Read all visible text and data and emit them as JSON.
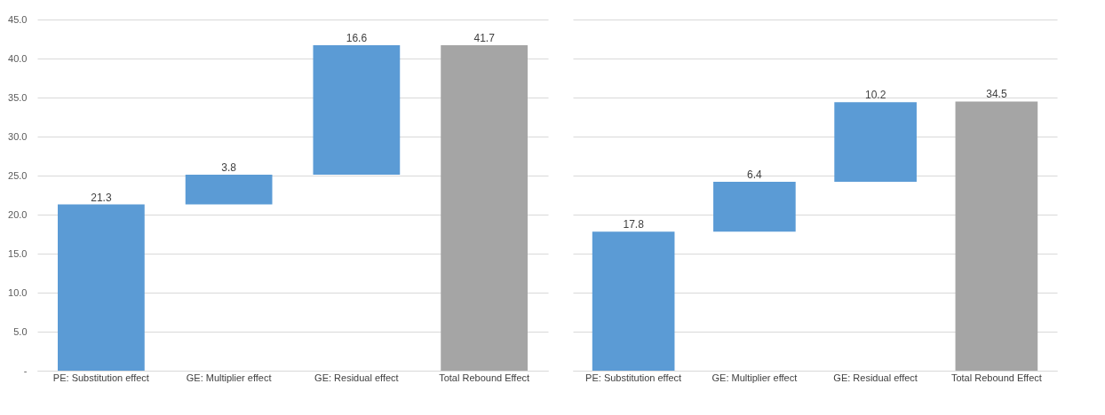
{
  "chart_data": [
    {
      "type": "bar",
      "categories": [
        "PE: Substitution effect",
        "GE: Multiplier effect",
        "GE: Residual effect",
        "Total Rebound Effect"
      ],
      "values": [
        21.3,
        3.8,
        16.6,
        41.7
      ],
      "base": [
        0,
        21.3,
        25.1,
        0
      ],
      "colors": [
        "#5b9bd5",
        "#5b9bd5",
        "#5b9bd5",
        "#a5a5a5"
      ],
      "ylim": [
        0,
        45
      ],
      "yticks": [
        {
          "value": 0,
          "label": "-"
        },
        {
          "value": 5,
          "label": "5.0"
        },
        {
          "value": 10,
          "label": "10.0"
        },
        {
          "value": 15,
          "label": "15.0"
        },
        {
          "value": 20,
          "label": "20.0"
        },
        {
          "value": 25,
          "label": "25.0"
        },
        {
          "value": 30,
          "label": "30.0"
        },
        {
          "value": 35,
          "label": "35.0"
        },
        {
          "value": 40,
          "label": "40.0"
        },
        {
          "value": 45,
          "label": "45.0"
        }
      ],
      "grid": "y",
      "data_labels": true
    },
    {
      "type": "bar",
      "categories": [
        "PE: Substitution effect",
        "GE: Multiplier effect",
        "GE: Residual effect",
        "Total Rebound Effect"
      ],
      "values": [
        17.8,
        6.4,
        10.2,
        34.5
      ],
      "base": [
        0,
        17.8,
        24.2,
        0
      ],
      "colors": [
        "#5b9bd5",
        "#5b9bd5",
        "#5b9bd5",
        "#a5a5a5"
      ],
      "ylim": [
        0,
        45
      ],
      "yticks": [
        0,
        5,
        10,
        15,
        20,
        25,
        30,
        35,
        40,
        45
      ],
      "grid": "y",
      "data_labels": true,
      "tick_labels": "x"
    }
  ]
}
